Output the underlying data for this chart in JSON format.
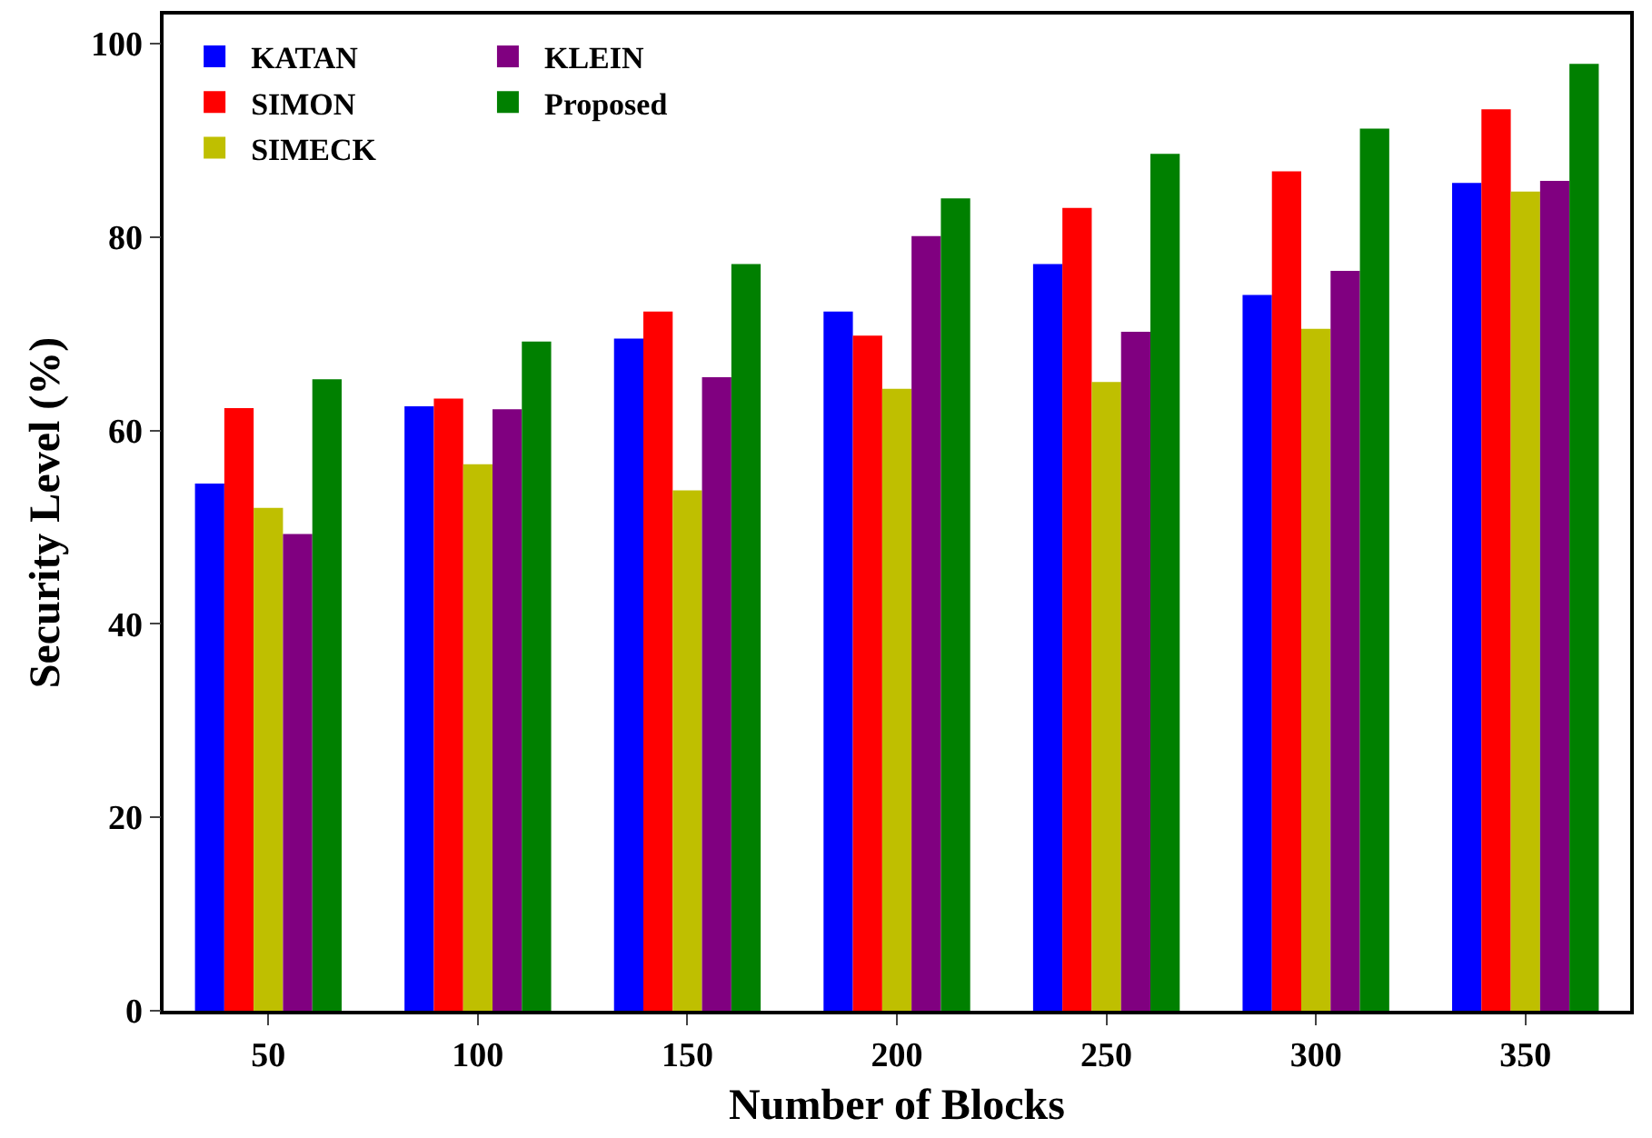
{
  "chart_data": {
    "type": "bar",
    "xlabel": "Number of Blocks",
    "ylabel": "Security Level (%)",
    "categories": [
      "50",
      "100",
      "150",
      "200",
      "250",
      "300",
      "350"
    ],
    "series": [
      {
        "name": "KATAN",
        "color": "#0000ff",
        "values": [
          54.5,
          62.5,
          69.5,
          72.3,
          77.2,
          74,
          85.6
        ]
      },
      {
        "name": "SIMON",
        "color": "#ff0000",
        "values": [
          62.3,
          63.3,
          72.3,
          69.8,
          83,
          86.8,
          93.2
        ]
      },
      {
        "name": "SIMECK",
        "color": "#bfbf00",
        "values": [
          52,
          56.5,
          53.8,
          64.3,
          65,
          70.5,
          84.7
        ]
      },
      {
        "name": "KLEIN",
        "color": "#800080",
        "values": [
          49.3,
          62.2,
          65.5,
          80.1,
          70.2,
          76.5,
          85.8
        ]
      },
      {
        "name": "Proposed",
        "color": "#008000",
        "values": [
          65.3,
          69.2,
          77.2,
          84,
          88.6,
          91.2,
          97.9
        ]
      }
    ],
    "ylim": [
      0,
      103
    ],
    "yticks": [
      0,
      20,
      40,
      60,
      80,
      100
    ],
    "grid": false,
    "legend": "top left"
  }
}
